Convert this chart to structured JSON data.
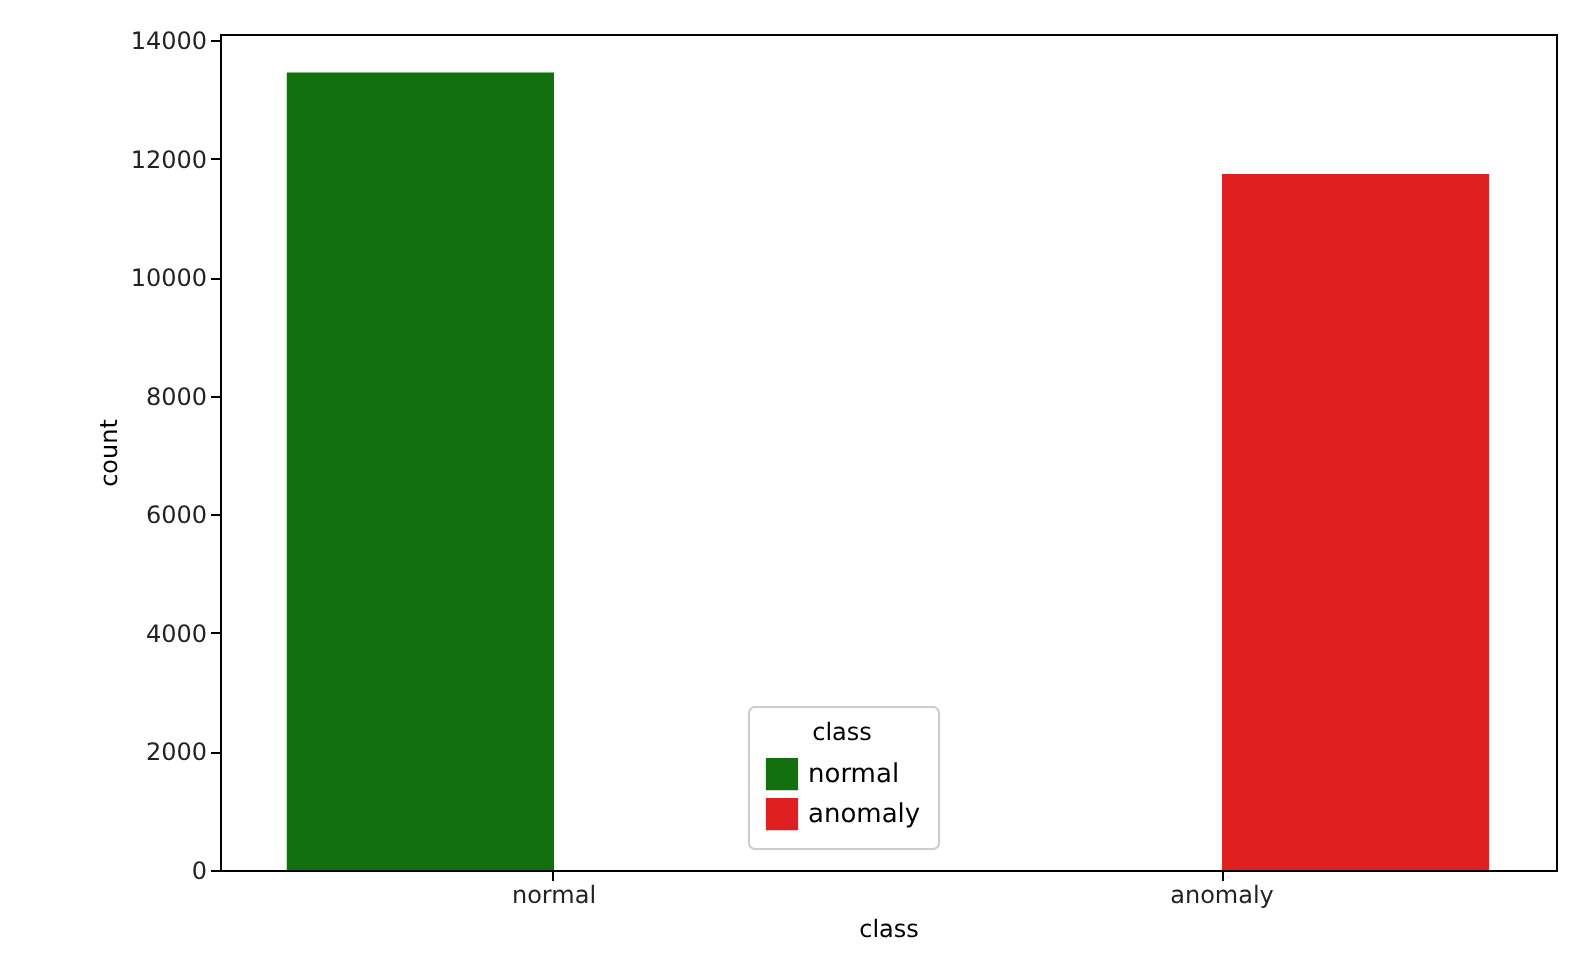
{
  "chart_data": {
    "type": "bar",
    "categories": [
      "normal",
      "anomaly"
    ],
    "xlabel": "class",
    "ylabel": "count",
    "legend_title": "class",
    "series": [
      {
        "name": "normal",
        "color": "#12700f",
        "values": [
          13450,
          null
        ]
      },
      {
        "name": "anomaly",
        "color": "#e02020",
        "values": [
          null,
          11740
        ]
      }
    ],
    "ylim": [
      0,
      14100
    ],
    "yticks": [
      0,
      2000,
      4000,
      6000,
      8000,
      10000,
      12000,
      14000
    ],
    "grid": false,
    "legend": "bottom"
  }
}
